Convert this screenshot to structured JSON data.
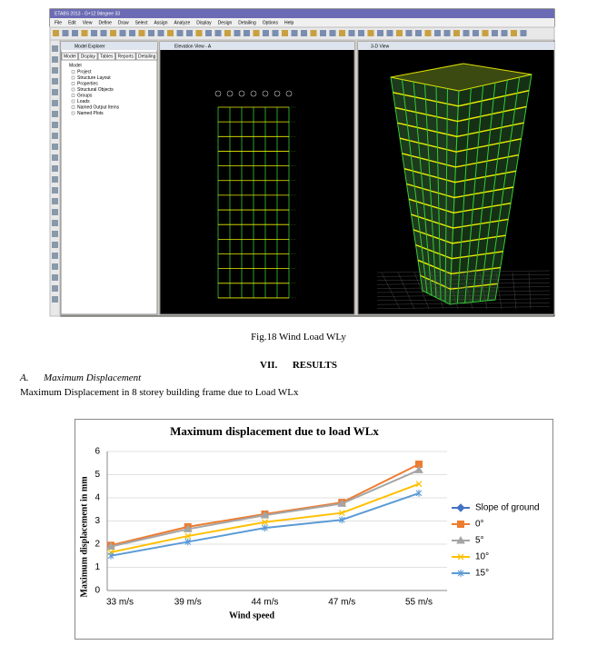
{
  "screenshot": {
    "title_bar": "ETABS 2013 - G+12 0degree 33",
    "menu": [
      "File",
      "Edit",
      "View",
      "Define",
      "Draw",
      "Select",
      "Assign",
      "Analyze",
      "Display",
      "Design",
      "Detailing",
      "Options",
      "Help"
    ],
    "explorer_title": "Model Explorer",
    "tabs": [
      "Model",
      "Display",
      "Tables",
      "Reports",
      "Detailing"
    ],
    "tree_root": "Model",
    "tree": [
      "Project",
      "Structure Layout",
      "Properties",
      "Structural Objects",
      "Groups",
      "Loads",
      "Named Output Items",
      "Named Plots"
    ],
    "elevation_title": "Elevation View - A",
    "view3d_title": "3-D View"
  },
  "figure_caption": "Fig.18 Wind Load WLy",
  "section_number": "VII.",
  "section_title": "RESULTS",
  "subsection_letter": "A.",
  "subsection_title": "Maximum Displacement",
  "paragraph": "Maximum Displacement in 8 storey building frame due to Load WLx",
  "chart_data": {
    "type": "line",
    "title": "Maximum displacement due to load WLx",
    "x_label": "Wind  speed",
    "y_label": "Maximum displacement in mm",
    "categories": [
      "33 m/s",
      "39 m/s",
      "44 m/s",
      "47 m/s",
      "55 m/s"
    ],
    "series": [
      {
        "name": "Slope of ground",
        "color": "#4472c4",
        "marker": "diamond",
        "values": [
          null,
          null,
          null,
          null,
          null
        ]
      },
      {
        "name": "0°",
        "color": "#ed7d31",
        "marker": "square",
        "values": [
          1.95,
          2.75,
          3.3,
          3.8,
          5.45
        ]
      },
      {
        "name": "5°",
        "color": "#a5a5a5",
        "marker": "triangle",
        "values": [
          1.9,
          2.65,
          3.25,
          3.75,
          5.2
        ]
      },
      {
        "name": "10°",
        "color": "#ffc000",
        "marker": "x",
        "values": [
          1.65,
          2.35,
          2.95,
          3.35,
          4.6
        ]
      },
      {
        "name": "15°",
        "color": "#5b9bd5",
        "marker": "star",
        "values": [
          1.5,
          2.1,
          2.7,
          3.05,
          4.2
        ]
      }
    ],
    "ylim": [
      0,
      6
    ],
    "yticks": [
      0,
      1,
      2,
      3,
      4,
      5,
      6
    ],
    "grid": true,
    "legend": "right"
  }
}
